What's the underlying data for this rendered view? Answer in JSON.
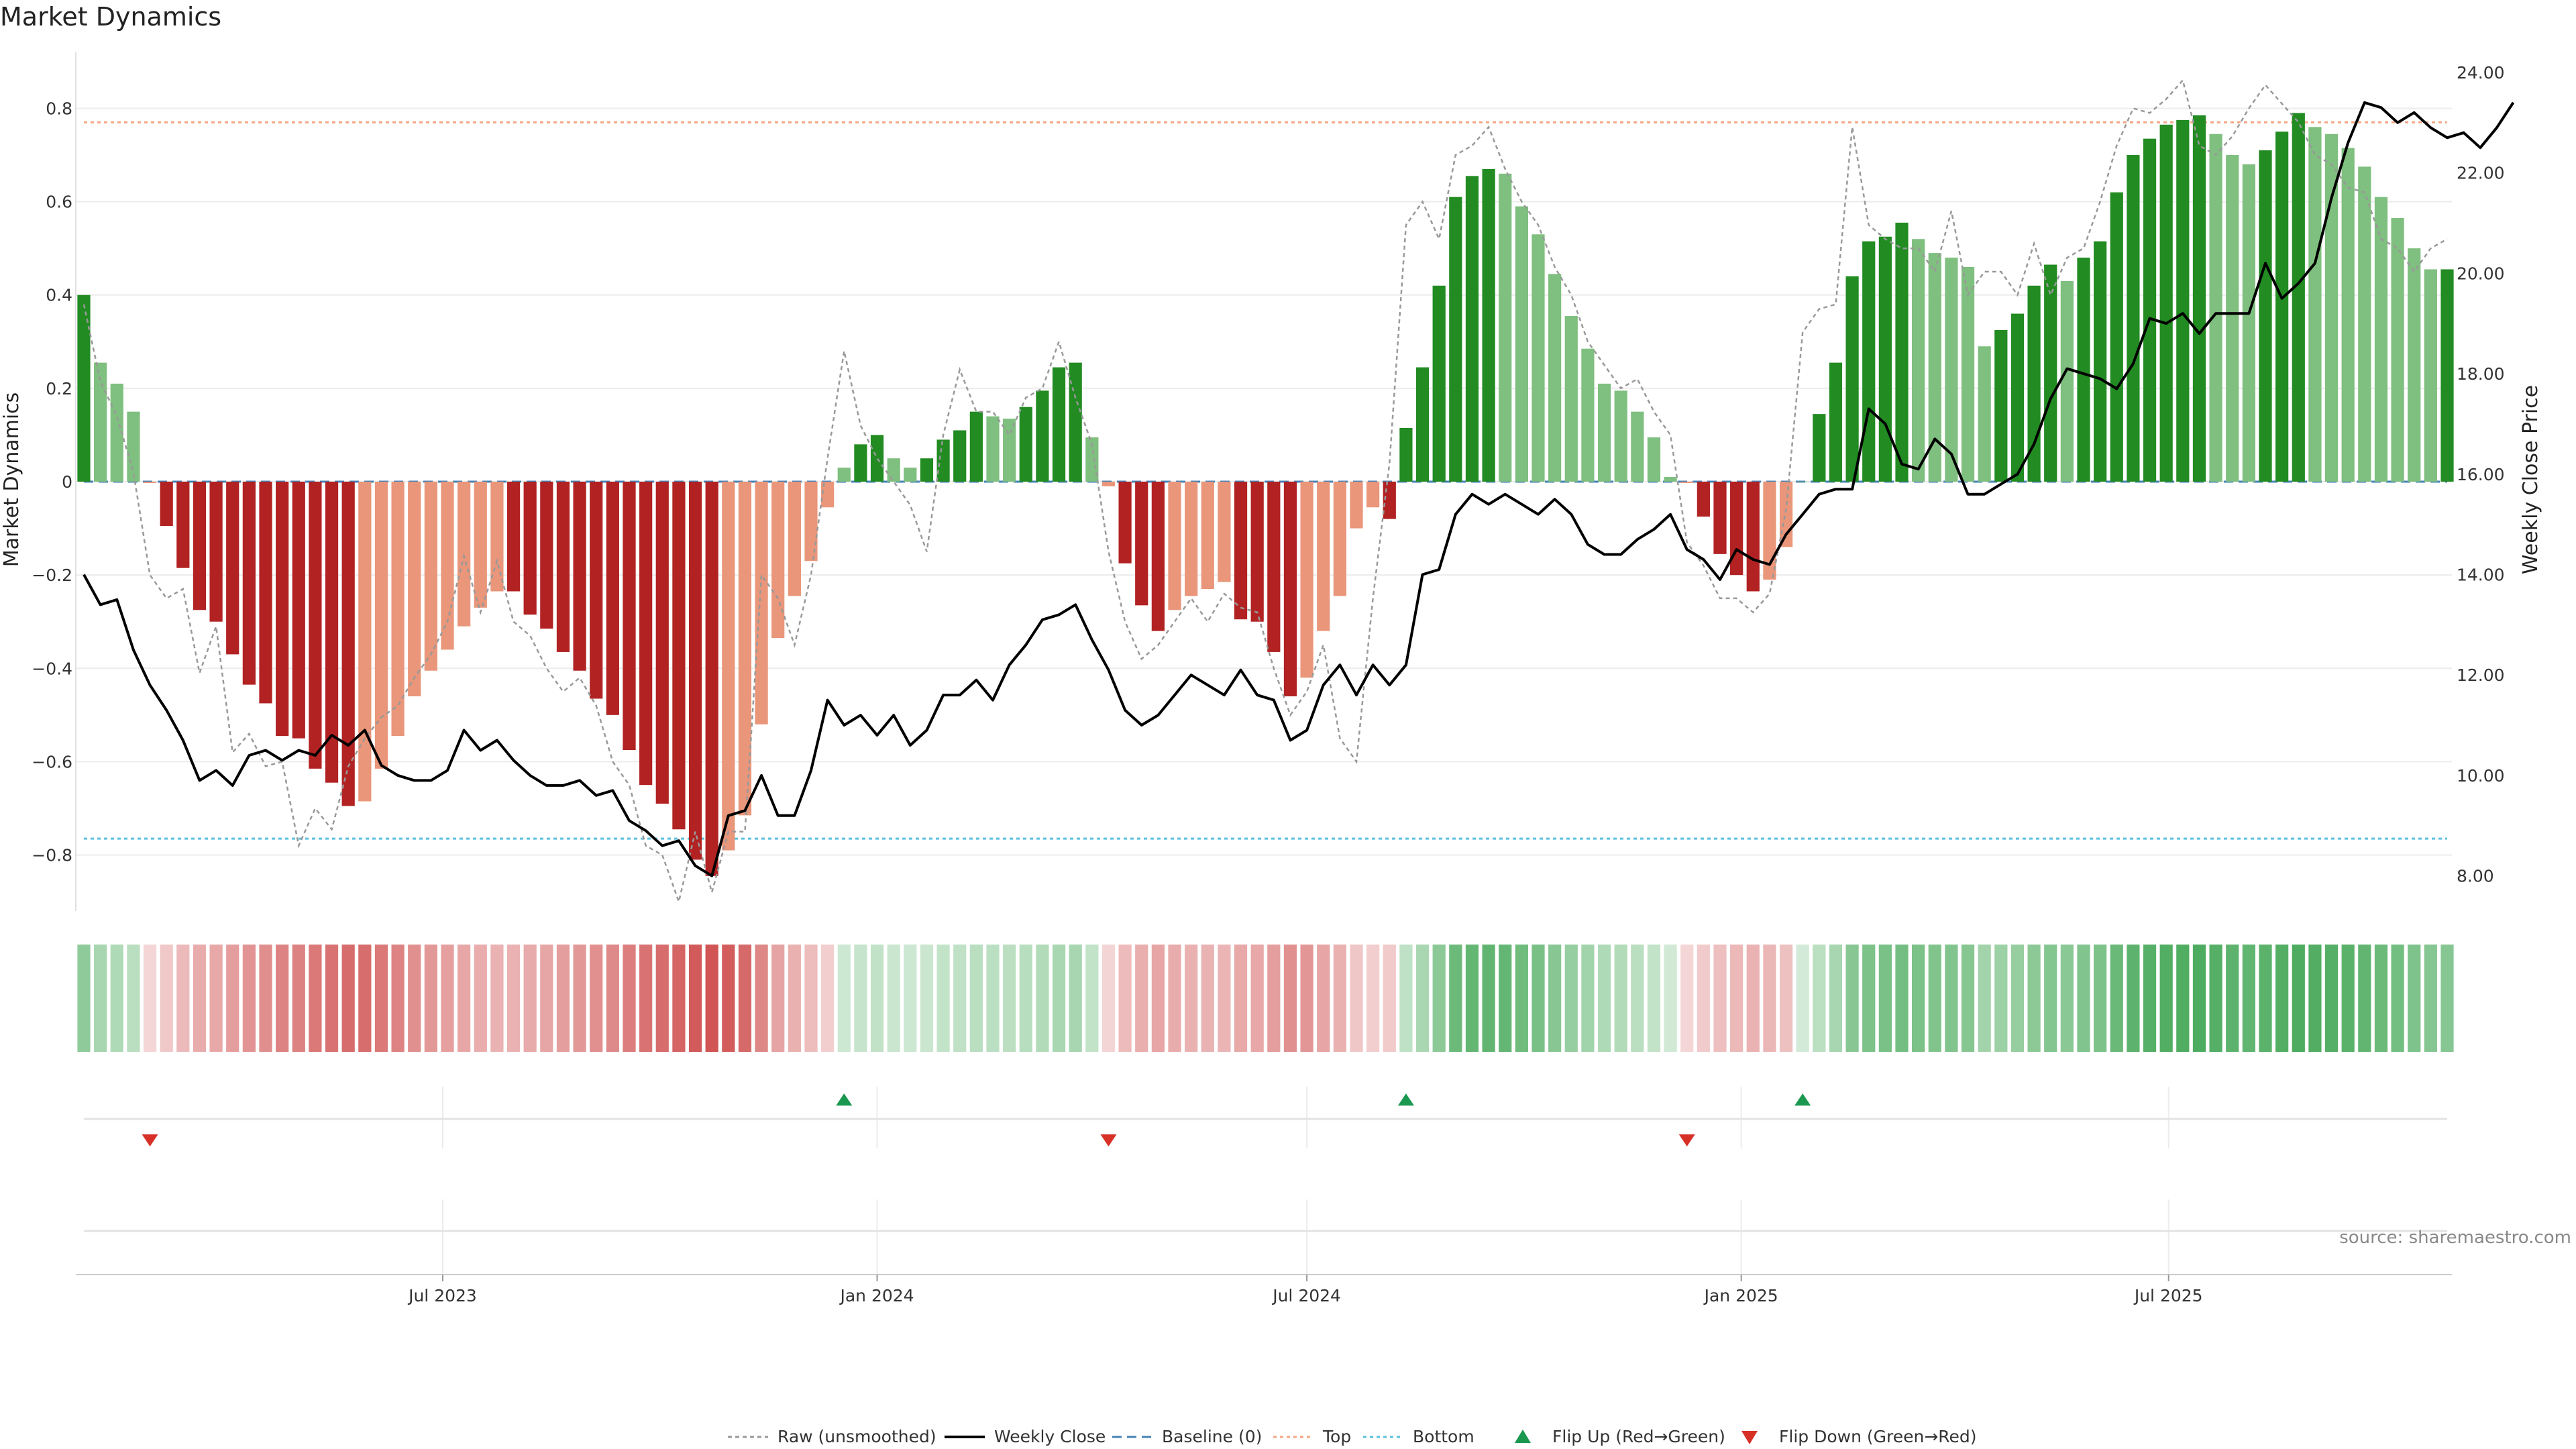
{
  "chart_data": {
    "type": "bar",
    "title": "Market Dynamics",
    "ylabel_left": "Market Dynamics",
    "ylabel_right": "Weekly Close Price",
    "source": "source: sharemaestro.com",
    "y_left": {
      "range": [
        -0.92,
        0.92
      ],
      "ticks": [
        0.8,
        0.6,
        0.4,
        0.2,
        0,
        -0.2,
        -0.4,
        -0.6,
        -0.8
      ],
      "tick_labels": [
        "0.8",
        "0.6",
        "0.4",
        "0.2",
        "0",
        "−0.2",
        "−0.4",
        "−0.6",
        "−0.8"
      ]
    },
    "y_right": {
      "range": [
        7.3,
        24.4
      ],
      "ticks": [
        24,
        22,
        20,
        18,
        16,
        14,
        12,
        10,
        8
      ],
      "tick_labels": [
        "24.00",
        "22.00",
        "20.00",
        "18.00",
        "16.00",
        "14.00",
        "12.00",
        "10.00",
        "8.00"
      ]
    },
    "x_dates": {
      "start": "2023-01-30",
      "step_days": 7
    },
    "x_ticks": [
      {
        "date": "2023-07-01",
        "label": "Jul 2023"
      },
      {
        "date": "2024-01-01",
        "label": "Jan 2024"
      },
      {
        "date": "2024-07-01",
        "label": "Jul 2024"
      },
      {
        "date": "2025-01-01",
        "label": "Jan 2025"
      },
      {
        "date": "2025-07-01",
        "label": "Jul 2025"
      }
    ],
    "top_level": 0.77,
    "bottom_level": -0.765,
    "grid": true,
    "legend_position": "bottom-center",
    "series": [
      {
        "name": "Market Dynamics",
        "type": "bar",
        "values": [
          0.4,
          0.255,
          0.21,
          0.15,
          -0.003,
          -0.095,
          -0.185,
          -0.275,
          -0.3,
          -0.37,
          -0.435,
          -0.475,
          -0.545,
          -0.55,
          -0.615,
          -0.645,
          -0.695,
          -0.685,
          -0.615,
          -0.545,
          -0.46,
          -0.405,
          -0.36,
          -0.31,
          -0.27,
          -0.235,
          -0.235,
          -0.285,
          -0.315,
          -0.365,
          -0.405,
          -0.465,
          -0.5,
          -0.575,
          -0.65,
          -0.69,
          -0.745,
          -0.81,
          -0.845,
          -0.79,
          -0.715,
          -0.52,
          -0.335,
          -0.245,
          -0.17,
          -0.055,
          0.03,
          0.08,
          0.1,
          0.05,
          0.03,
          0.05,
          0.09,
          0.11,
          0.15,
          0.14,
          0.135,
          0.16,
          0.195,
          0.245,
          0.255,
          0.095,
          -0.01,
          -0.175,
          -0.265,
          -0.32,
          -0.275,
          -0.245,
          -0.23,
          -0.215,
          -0.295,
          -0.3,
          -0.365,
          -0.46,
          -0.42,
          -0.32,
          -0.245,
          -0.1,
          -0.055,
          -0.08,
          0.115,
          0.245,
          0.42,
          0.61,
          0.655,
          0.67,
          0.66,
          0.59,
          0.53,
          0.445,
          0.355,
          0.285,
          0.21,
          0.195,
          0.15,
          0.095,
          0.01,
          -0.003,
          -0.075,
          -0.155,
          -0.2,
          -0.235,
          -0.21,
          -0.14,
          0.0,
          0.145,
          0.255,
          0.44,
          0.515,
          0.525,
          0.555,
          0.52,
          0.49,
          0.48,
          0.46,
          0.29,
          0.325,
          0.36,
          0.42,
          0.465,
          0.43,
          0.48,
          0.515,
          0.62,
          0.7,
          0.735,
          0.765,
          0.775,
          0.785,
          0.745,
          0.7,
          0.68,
          0.71,
          0.75,
          0.79,
          0.76,
          0.745,
          0.715,
          0.675,
          0.61,
          0.565,
          0.5,
          0.455,
          0.455
        ]
      },
      {
        "name": "Raw (unsmoothed)",
        "type": "line",
        "values": [
          0.38,
          0.215,
          0.14,
          0.02,
          -0.2,
          -0.25,
          -0.23,
          -0.41,
          -0.31,
          -0.58,
          -0.54,
          -0.61,
          -0.6,
          -0.78,
          -0.7,
          -0.745,
          -0.61,
          -0.55,
          -0.505,
          -0.48,
          -0.42,
          -0.37,
          -0.3,
          -0.16,
          -0.28,
          -0.17,
          -0.3,
          -0.33,
          -0.4,
          -0.45,
          -0.42,
          -0.48,
          -0.6,
          -0.65,
          -0.78,
          -0.8,
          -0.9,
          -0.75,
          -0.88,
          -0.75,
          -0.75,
          -0.2,
          -0.25,
          -0.35,
          -0.2,
          0.05,
          0.28,
          0.12,
          0.05,
          0.0,
          -0.05,
          -0.15,
          0.1,
          0.24,
          0.15,
          0.15,
          0.1,
          0.18,
          0.2,
          0.3,
          0.18,
          0.08,
          -0.15,
          -0.3,
          -0.38,
          -0.35,
          -0.3,
          -0.25,
          -0.3,
          -0.24,
          -0.27,
          -0.28,
          -0.4,
          -0.5,
          -0.45,
          -0.35,
          -0.55,
          -0.6,
          -0.25,
          0.04,
          0.55,
          0.6,
          0.52,
          0.7,
          0.72,
          0.76,
          0.67,
          0.6,
          0.55,
          0.46,
          0.4,
          0.3,
          0.25,
          0.2,
          0.22,
          0.15,
          0.1,
          -0.13,
          -0.18,
          -0.25,
          -0.25,
          -0.28,
          -0.24,
          -0.06,
          0.32,
          0.37,
          0.38,
          0.76,
          0.55,
          0.52,
          0.5,
          0.5,
          0.45,
          0.58,
          0.4,
          0.45,
          0.45,
          0.4,
          0.51,
          0.4,
          0.48,
          0.5,
          0.6,
          0.72,
          0.8,
          0.79,
          0.82,
          0.86,
          0.72,
          0.7,
          0.74,
          0.8,
          0.85,
          0.81,
          0.77,
          0.7,
          0.68,
          0.63,
          0.62,
          0.52,
          0.5,
          0.45,
          0.5,
          0.52
        ]
      },
      {
        "name": "Weekly Close",
        "type": "line",
        "axis": "right",
        "values": [
          14.0,
          13.4,
          13.5,
          12.5,
          11.8,
          11.3,
          10.7,
          9.9,
          10.1,
          9.8,
          10.4,
          10.5,
          10.3,
          10.5,
          10.4,
          10.8,
          10.6,
          10.9,
          10.2,
          10.0,
          9.9,
          9.9,
          10.1,
          10.9,
          10.5,
          10.7,
          10.3,
          10.0,
          9.8,
          9.8,
          9.9,
          9.6,
          9.7,
          9.1,
          8.9,
          8.6,
          8.7,
          8.2,
          8.0,
          9.2,
          9.3,
          10.0,
          9.2,
          9.2,
          10.1,
          11.5,
          11.0,
          11.2,
          10.8,
          11.2,
          10.6,
          10.9,
          11.6,
          11.6,
          11.9,
          11.5,
          12.2,
          12.6,
          13.1,
          13.2,
          13.4,
          12.7,
          12.1,
          11.3,
          11.0,
          11.2,
          11.6,
          12.0,
          11.8,
          11.6,
          12.1,
          11.6,
          11.5,
          10.7,
          10.9,
          11.8,
          12.2,
          11.6,
          12.2,
          11.8,
          12.2,
          14.0,
          14.1,
          15.2,
          15.6,
          15.4,
          15.6,
          15.4,
          15.2,
          15.5,
          15.2,
          14.6,
          14.4,
          14.4,
          14.7,
          14.9,
          15.2,
          14.5,
          14.3,
          13.9,
          14.5,
          14.3,
          14.2,
          14.8,
          15.2,
          15.6,
          15.7,
          15.7,
          17.3,
          17.0,
          16.2,
          16.1,
          16.7,
          16.4,
          15.6,
          15.6,
          15.8,
          16.0,
          16.6,
          17.5,
          18.1,
          18.0,
          17.9,
          17.7,
          18.2,
          19.1,
          19.0,
          19.2,
          18.8,
          19.2,
          19.2,
          19.2,
          20.2,
          19.5,
          19.8,
          20.2,
          21.5,
          22.6,
          23.4,
          23.3,
          23.0,
          23.2,
          22.9,
          22.7,
          22.8,
          22.5,
          22.9,
          23.4
        ]
      }
    ],
    "band": {
      "values": [
        0.4,
        0.255,
        0.21,
        0.15,
        -0.003,
        -0.095,
        -0.185,
        -0.275,
        -0.3,
        -0.37,
        -0.435,
        -0.475,
        -0.545,
        -0.55,
        -0.615,
        -0.645,
        -0.695,
        -0.685,
        -0.615,
        -0.545,
        -0.46,
        -0.405,
        -0.36,
        -0.31,
        -0.27,
        -0.235,
        -0.235,
        -0.285,
        -0.315,
        -0.365,
        -0.405,
        -0.465,
        -0.5,
        -0.575,
        -0.65,
        -0.69,
        -0.745,
        -0.81,
        -0.845,
        -0.79,
        -0.715,
        -0.52,
        -0.335,
        -0.245,
        -0.17,
        -0.055,
        0.03,
        0.08,
        0.1,
        0.05,
        0.03,
        0.05,
        0.09,
        0.11,
        0.15,
        0.14,
        0.135,
        0.16,
        0.195,
        0.245,
        0.255,
        0.095,
        -0.01,
        -0.175,
        -0.265,
        -0.32,
        -0.275,
        -0.245,
        -0.23,
        -0.215,
        -0.295,
        -0.3,
        -0.365,
        -0.46,
        -0.42,
        -0.32,
        -0.245,
        -0.1,
        -0.055,
        -0.08,
        0.115,
        0.245,
        0.42,
        0.61,
        0.655,
        0.67,
        0.66,
        0.59,
        0.53,
        0.445,
        0.355,
        0.285,
        0.21,
        0.195,
        0.15,
        0.095,
        0.01,
        -0.003,
        -0.075,
        -0.155,
        -0.2,
        -0.235,
        -0.21,
        -0.14,
        0.0,
        0.145,
        0.255,
        0.44,
        0.515,
        0.525,
        0.555,
        0.52,
        0.49,
        0.48,
        0.46,
        0.29,
        0.325,
        0.36,
        0.42,
        0.465,
        0.43,
        0.48,
        0.515,
        0.62,
        0.7,
        0.735,
        0.765,
        0.775,
        0.785,
        0.745,
        0.7,
        0.68,
        0.71,
        0.75,
        0.79,
        0.76,
        0.745,
        0.715,
        0.675,
        0.61,
        0.565,
        0.5,
        0.455,
        0.455
      ]
    },
    "flip_up_indices": [
      46,
      80,
      104
    ],
    "flip_down_indices": [
      4,
      62,
      97
    ],
    "legend": [
      {
        "key": "raw",
        "label": "Raw (unsmoothed)"
      },
      {
        "key": "close",
        "label": "Weekly Close"
      },
      {
        "key": "baseline",
        "label": "Baseline (0)"
      },
      {
        "key": "top",
        "label": "Top"
      },
      {
        "key": "bottom",
        "label": "Bottom"
      },
      {
        "key": "flipup",
        "label": "Flip Up (Red→Green)"
      },
      {
        "key": "flipdown",
        "label": "Flip Down (Green→Red)"
      }
    ],
    "colors": {
      "strong_green": "#228b22",
      "light_green": "#7fbf7f",
      "strong_red": "#b22222",
      "light_red": "#e9967a",
      "close_line": "#000000",
      "raw_line": "#999999",
      "baseline": "#4682b4",
      "top": "#f4a582",
      "bottom": "#5bc0de",
      "flip_up": "#1a9850",
      "flip_down": "#d73027"
    }
  }
}
